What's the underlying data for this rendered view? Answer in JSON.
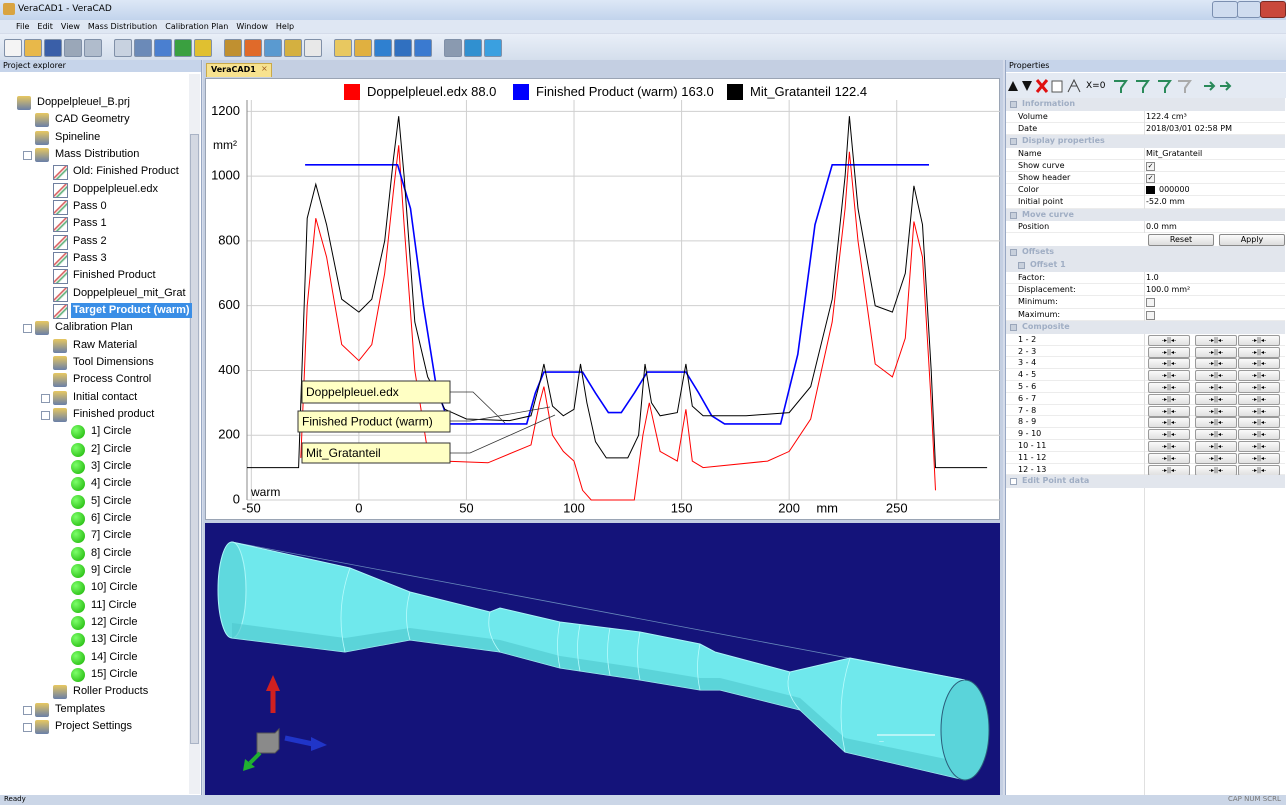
{
  "window": {
    "title": "VeraCAD1 - VeraCAD"
  },
  "menu": [
    "File",
    "Edit",
    "View",
    "Mass Distribution",
    "Calibration Plan",
    "Window",
    "Help"
  ],
  "project_explorer": {
    "title": "Project explorer",
    "tree": [
      "Doppelpleuel_B.prj",
      "CAD Geometry",
      "Spineline",
      "Mass Distribution",
      "Old: Finished Product",
      "Doppelpleuel.edx",
      "Pass 0",
      "Pass 1",
      "Pass 2",
      "Pass 3",
      "Finished Product",
      "Doppelpleuel_mit_Grat",
      "Target Product (warm)",
      "Calibration Plan",
      "Raw Material",
      "Tool Dimensions",
      "Process Control",
      "Initial contact",
      "Finished product",
      "1] Circle",
      "2] Circle",
      "3] Circle",
      "4] Circle",
      "5] Circle",
      "6] Circle",
      "7] Circle",
      "8] Circle",
      "9] Circle",
      "10] Circle",
      "11] Circle",
      "12] Circle",
      "13] Circle",
      "14] Circle",
      "15] Circle",
      "Roller Products",
      "Templates",
      "Project Settings"
    ],
    "selected": 12
  },
  "tab": "VeraCAD1",
  "chart_data": {
    "type": "line",
    "series": [
      {
        "name": "Doppelpleuel.edx",
        "total_label": "88.0",
        "color": "#ff0000",
        "x": [
          -27,
          -24,
          -20,
          -15,
          -8,
          0,
          6,
          12,
          16,
          18.5,
          21,
          26,
          32,
          40,
          60,
          80,
          84,
          86,
          90,
          95,
          100,
          104,
          108,
          128,
          132,
          135,
          140,
          148,
          152,
          155,
          160,
          190,
          200,
          210,
          220,
          226,
          228,
          232,
          240,
          248,
          254,
          258,
          262,
          266,
          268
        ],
        "values": [
          130,
          600,
          870,
          750,
          480,
          430,
          480,
          700,
          950,
          1095,
          850,
          400,
          150,
          120,
          115,
          170,
          300,
          350,
          200,
          150,
          120,
          30,
          0,
          0,
          200,
          300,
          150,
          120,
          280,
          120,
          100,
          120,
          150,
          250,
          550,
          900,
          1075,
          800,
          420,
          380,
          500,
          860,
          750,
          300,
          30
        ]
      },
      {
        "name": "Finished Product (warm)",
        "total_label": "163.0",
        "color": "#0000ff",
        "x": [
          -25,
          18,
          24,
          30,
          36,
          42,
          78,
          82,
          86,
          104,
          110,
          116,
          122,
          128,
          134,
          152,
          158,
          164,
          170,
          196,
          204,
          212,
          220,
          265
        ],
        "values": [
          1035,
          1035,
          900,
          600,
          350,
          235,
          235,
          330,
          395,
          395,
          330,
          270,
          270,
          330,
          395,
          395,
          330,
          260,
          235,
          235,
          450,
          850,
          1035,
          1035
        ]
      },
      {
        "name": "Mit_Gratanteil",
        "total_label": "122.4",
        "color": "#000000",
        "x": [
          -52,
          -28,
          -27,
          -24,
          -20,
          -15,
          -8,
          0,
          6,
          12,
          16,
          18.5,
          21,
          26,
          32,
          40,
          50,
          70,
          80,
          84,
          86,
          90,
          95,
          100,
          103,
          106,
          110,
          115,
          125,
          130,
          133,
          136,
          140,
          148,
          152,
          155,
          160,
          180,
          200,
          210,
          220,
          226,
          228,
          232,
          240,
          248,
          254,
          258,
          262,
          266,
          268,
          292
        ],
        "values": [
          100,
          100,
          300,
          870,
          975,
          850,
          620,
          580,
          620,
          800,
          1050,
          1185,
          1000,
          550,
          380,
          280,
          250,
          245,
          260,
          360,
          420,
          290,
          260,
          280,
          420,
          300,
          180,
          130,
          130,
          200,
          420,
          300,
          260,
          270,
          420,
          290,
          260,
          260,
          270,
          350,
          620,
          1000,
          1185,
          900,
          600,
          580,
          700,
          970,
          850,
          400,
          100,
          100
        ]
      }
    ],
    "xlim": [
      -52,
      298
    ],
    "xticks": [
      -50,
      0,
      50,
      100,
      150,
      200,
      250
    ],
    "x_label": "mm",
    "ylim": [
      0,
      1235
    ],
    "yticks": [
      0,
      200,
      400,
      600,
      800,
      1000,
      1200
    ],
    "y_label": "mm²",
    "note": "warm",
    "grid": true
  },
  "properties": {
    "title": "Properties",
    "toolbar_text": "X=0",
    "sections": [
      {
        "title": "Information",
        "rows": [
          {
            "label": "Volume",
            "value": "122.4 cm³"
          },
          {
            "label": "Date",
            "value": "2018/03/01 02:58 PM"
          }
        ]
      },
      {
        "title": "Display properties",
        "rows": [
          {
            "label": "Name",
            "value": "Mit_Gratanteil"
          },
          {
            "label": "Show curve",
            "checked": true
          },
          {
            "label": "Show header",
            "checked": true
          },
          {
            "label": "Color",
            "value": "000000",
            "swatch": "#000000"
          },
          {
            "label": "Initial point",
            "value": "-52.0 mm"
          }
        ]
      },
      {
        "title": "Move curve",
        "rows": [
          {
            "label": "Position",
            "value": "0.0 mm"
          }
        ],
        "buttons": [
          "Reset",
          "Apply"
        ]
      },
      {
        "title": "Offsets",
        "subsections": [
          {
            "title": "Offset 1",
            "rows": [
              {
                "label": "Factor:",
                "value": "1.0"
              },
              {
                "label": "Displacement:",
                "value": "100.0 mm²"
              },
              {
                "label": "Minimum:",
                "checked": false
              },
              {
                "label": "Maximum:",
                "checked": false
              }
            ]
          }
        ]
      },
      {
        "title": "Composite",
        "rows": [
          {
            "label": "1 - 2"
          },
          {
            "label": "2 - 3"
          },
          {
            "label": "3 - 4"
          },
          {
            "label": "4 - 5"
          },
          {
            "label": "5 - 6"
          },
          {
            "label": "6 - 7"
          },
          {
            "label": "7 - 8"
          },
          {
            "label": "8 - 9"
          },
          {
            "label": "9 - 10"
          },
          {
            "label": "10 - 11"
          },
          {
            "label": "11 - 12"
          },
          {
            "label": "12 - 13"
          }
        ]
      },
      {
        "title": "Edit Point data",
        "collapsed": true
      }
    ]
  },
  "status": {
    "left": "Ready",
    "right": "CAP NUM SCRL"
  }
}
